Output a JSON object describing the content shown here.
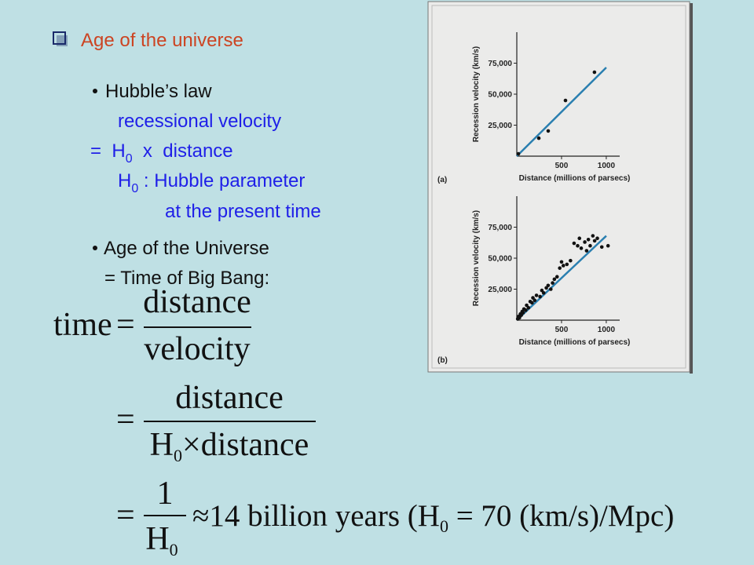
{
  "heading": "Age of the universe",
  "hubble": {
    "title": "Hubble’s law",
    "line1": "recessional velocity",
    "line2": {
      "pre": "=  H",
      "sub": "0",
      "post": "  x  distance"
    },
    "line3": {
      "pre": "H",
      "sub": "0",
      "post": " : Hubble parameter"
    },
    "line4": "at the present time"
  },
  "age": {
    "title": "Age of the Universe",
    "line1": "= Time of Big Bang:"
  },
  "equations": [
    {
      "lhs": "time",
      "op": "=",
      "num": "distance",
      "den": "velocity"
    },
    {
      "op": "=",
      "num": "distance",
      "den": {
        "pre": "H",
        "sub": "0",
        "post": "×distance"
      }
    },
    {
      "op": "=",
      "num": "1",
      "den": {
        "pre": "H",
        "sub": "0"
      },
      "rhs": {
        "pre": "≈14 billion years (H",
        "sub": "0",
        "post": " = 70 (km/s)/Mpc)"
      }
    }
  ],
  "chart_data": [
    {
      "type": "scatter",
      "label": "(a)",
      "x_label": "Distance (millions of parsecs)",
      "y_label": "Recession velocity (km/s)",
      "x": [
        18,
        246,
        351,
        544,
        868
      ],
      "values": [
        1900,
        14500,
        20300,
        44900,
        67700
      ],
      "color": "#111111",
      "trend": {
        "x": [
          0,
          1000
        ],
        "values": [
          0,
          71500
        ],
        "color": "#2a7fb0"
      },
      "xlim": [
        0,
        1150
      ],
      "ylim": [
        0,
        100000
      ],
      "xticks": [
        500,
        1000
      ],
      "yticks": [
        {
          "value": 25000,
          "label": "25,000"
        },
        {
          "value": 50000,
          "label": "50,000"
        },
        {
          "value": 75000,
          "label": "75,000"
        }
      ]
    },
    {
      "type": "scatter",
      "label": "(b)",
      "x_label": "Distance (millions of parsecs)",
      "y_label": "Recession velocity (km/s)",
      "x": [
        10,
        20,
        30,
        40,
        50,
        60,
        70,
        80,
        100,
        110,
        130,
        150,
        170,
        180,
        200,
        220,
        260,
        280,
        300,
        330,
        350,
        380,
        400,
        420,
        450,
        480,
        500,
        520,
        560,
        600,
        640,
        680,
        700,
        720,
        760,
        780,
        800,
        820,
        850,
        870,
        900,
        950,
        1020
      ],
      "values": [
        1000,
        3000,
        2000,
        5000,
        4000,
        7000,
        6000,
        9000,
        8000,
        12000,
        10000,
        15000,
        14000,
        18000,
        16000,
        20000,
        19000,
        24000,
        22000,
        26000,
        28000,
        25000,
        30000,
        33000,
        35000,
        42000,
        47000,
        44000,
        45000,
        48000,
        62000,
        60000,
        66000,
        58000,
        63000,
        56000,
        65000,
        60000,
        68000,
        64000,
        66000,
        59000,
        60000
      ],
      "color": "#111111",
      "trend": {
        "x": [
          0,
          1000
        ],
        "values": [
          0,
          68000
        ],
        "color": "#2a7fb0"
      },
      "xlim": [
        0,
        1150
      ],
      "ylim": [
        0,
        100000
      ],
      "xticks": [
        500,
        1000
      ],
      "yticks": [
        {
          "value": 25000,
          "label": "25,000"
        },
        {
          "value": 50000,
          "label": "50,000"
        },
        {
          "value": 75000,
          "label": "75,000"
        }
      ]
    }
  ]
}
